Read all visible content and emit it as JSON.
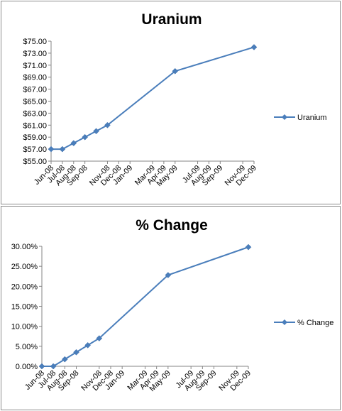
{
  "chart_data": [
    {
      "type": "line",
      "title": "Uranium",
      "xlabel": "",
      "ylabel": "",
      "x_tick_labels": [
        "Jun-08",
        "Jul-08",
        "Aug-08",
        "Sep-08",
        "Nov-08",
        "Dec-08",
        "Jan-09",
        "Mar-09",
        "Apr-09",
        "May-09",
        "Jul-09",
        "Aug-09",
        "Sep-09",
        "Nov-09",
        "Dec-09"
      ],
      "y_tick_labels": [
        "$55.00",
        "$57.00",
        "$59.00",
        "$61.00",
        "$63.00",
        "$65.00",
        "$67.00",
        "$69.00",
        "$71.00",
        "$73.00",
        "$75.00"
      ],
      "ylim": [
        55,
        75
      ],
      "series": [
        {
          "name": "Uranium",
          "color": "#4a7ebb",
          "points": [
            {
              "x": "Jun-08",
              "y": 57
            },
            {
              "x": "Jul-08",
              "y": 57
            },
            {
              "x": "Aug-08",
              "y": 58
            },
            {
              "x": "Sep-08",
              "y": 59
            },
            {
              "x": "Oct-08",
              "y": 60
            },
            {
              "x": "Nov-08",
              "y": 61
            },
            {
              "x": "May-09",
              "y": 70
            },
            {
              "x": "Dec-09",
              "y": 74
            }
          ]
        }
      ],
      "legend": "right",
      "grid": false
    },
    {
      "type": "line",
      "title": "% Change",
      "xlabel": "",
      "ylabel": "",
      "x_tick_labels": [
        "Jun-08",
        "Jul-08",
        "Aug-08",
        "Sep-08",
        "Nov-08",
        "Dec-08",
        "Jan-09",
        "Mar-09",
        "Apr-09",
        "May-09",
        "Jul-09",
        "Aug-09",
        "Sep-09",
        "Nov-09",
        "Dec-09"
      ],
      "y_tick_labels": [
        "0.00%",
        "5.00%",
        "10.00%",
        "15.00%",
        "20.00%",
        "25.00%",
        "30.00%"
      ],
      "ylim": [
        0,
        30
      ],
      "series": [
        {
          "name": "% Change",
          "color": "#4a7ebb",
          "points": [
            {
              "x": "Jun-08",
              "y": 0
            },
            {
              "x": "Jul-08",
              "y": 0
            },
            {
              "x": "Aug-08",
              "y": 1.75
            },
            {
              "x": "Sep-08",
              "y": 3.5
            },
            {
              "x": "Oct-08",
              "y": 5.26
            },
            {
              "x": "Nov-08",
              "y": 7.0
            },
            {
              "x": "May-09",
              "y": 22.8
            },
            {
              "x": "Dec-09",
              "y": 29.8
            }
          ]
        }
      ],
      "legend": "right",
      "grid": false
    }
  ]
}
